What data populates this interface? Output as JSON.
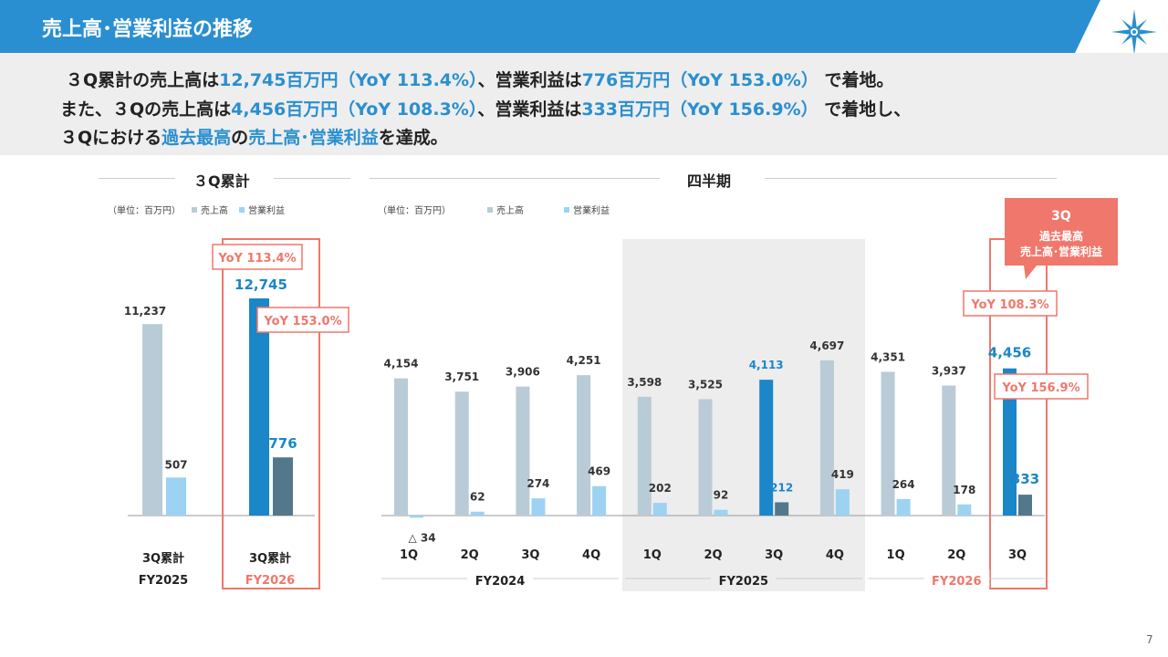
{
  "header": {
    "title": "売上高･営業利益の推移"
  },
  "summary": {
    "line1": [
      {
        "t": "３Q累計の売上高は",
        "h": false
      },
      {
        "t": "12,745百万円（YoY 113.4%）",
        "h": true
      },
      {
        "t": "、営業利益は",
        "h": false
      },
      {
        "t": "776百万円（YoY 153.0%）",
        "h": true
      },
      {
        "t": " で着地。",
        "h": false
      }
    ],
    "line2": [
      {
        "t": "また、３Qの売上高は",
        "h": false
      },
      {
        "t": "4,456百万円（YoY 108.3%）",
        "h": true
      },
      {
        "t": "、営業利益は",
        "h": false
      },
      {
        "t": "333百万円（YoY 156.9%）",
        "h": true
      },
      {
        "t": " で着地し、",
        "h": false
      }
    ],
    "line3": [
      {
        "t": "３Qにおける",
        "h": false
      },
      {
        "t": "過去最高",
        "h": true
      },
      {
        "t": "の",
        "h": false
      },
      {
        "t": "売上高･営業利益",
        "h": true
      },
      {
        "t": "を達成。",
        "h": false
      }
    ]
  },
  "colors": {
    "brand": "#2a8fd0",
    "sales": "#b9cbd6",
    "profit": "#9dd2f2",
    "sales_highlight": "#1b86c8",
    "profit_highlight": "#53778b",
    "accent": "#f0776b",
    "shade": "#ededed"
  },
  "legend": {
    "unit": "（単位：百万円）",
    "sales": "売上高",
    "profit": "営業利益"
  },
  "page_number": "7",
  "chart_data": [
    {
      "type": "bar",
      "title": "３Q累計",
      "categories": [
        "3Q累計",
        "3Q累計"
      ],
      "groups": [
        "FY2025",
        "FY2026"
      ],
      "series": [
        {
          "name": "売上高",
          "values": [
            11237,
            12745
          ]
        },
        {
          "name": "営業利益",
          "values": [
            507,
            776
          ]
        }
      ],
      "highlight_index": 1,
      "annotations": [
        {
          "label": "YoY 113.4%",
          "series": "売上高",
          "index": 1
        },
        {
          "label": "YoY 153.0%",
          "series": "営業利益",
          "index": 1
        }
      ]
    },
    {
      "type": "bar",
      "title": "四半期",
      "categories": [
        "1Q",
        "2Q",
        "3Q",
        "4Q",
        "1Q",
        "2Q",
        "3Q",
        "4Q",
        "1Q",
        "2Q",
        "3Q"
      ],
      "groups": [
        {
          "label": "FY2024",
          "from": 0,
          "to": 3
        },
        {
          "label": "FY2025",
          "from": 4,
          "to": 7
        },
        {
          "label": "FY2026",
          "from": 8,
          "to": 10
        }
      ],
      "series": [
        {
          "name": "売上高",
          "values": [
            4154,
            3751,
            3906,
            4251,
            3598,
            3525,
            4113,
            4697,
            4351,
            3937,
            4456
          ]
        },
        {
          "name": "営業利益",
          "values": [
            -34,
            62,
            274,
            469,
            202,
            92,
            212,
            419,
            264,
            178,
            333
          ]
        }
      ],
      "negative_label_prefix": "△ ",
      "shaded_group": "FY2025",
      "blue_sales_label_index": 6,
      "highlight_index": 10,
      "callout": {
        "line1": "3Q",
        "line2": "過去最高",
        "line3": "売上高･営業利益"
      },
      "annotations": [
        {
          "label": "YoY 108.3%",
          "series": "売上高",
          "index": 10
        },
        {
          "label": "YoY 156.9%",
          "series": "営業利益",
          "index": 10
        }
      ]
    }
  ]
}
